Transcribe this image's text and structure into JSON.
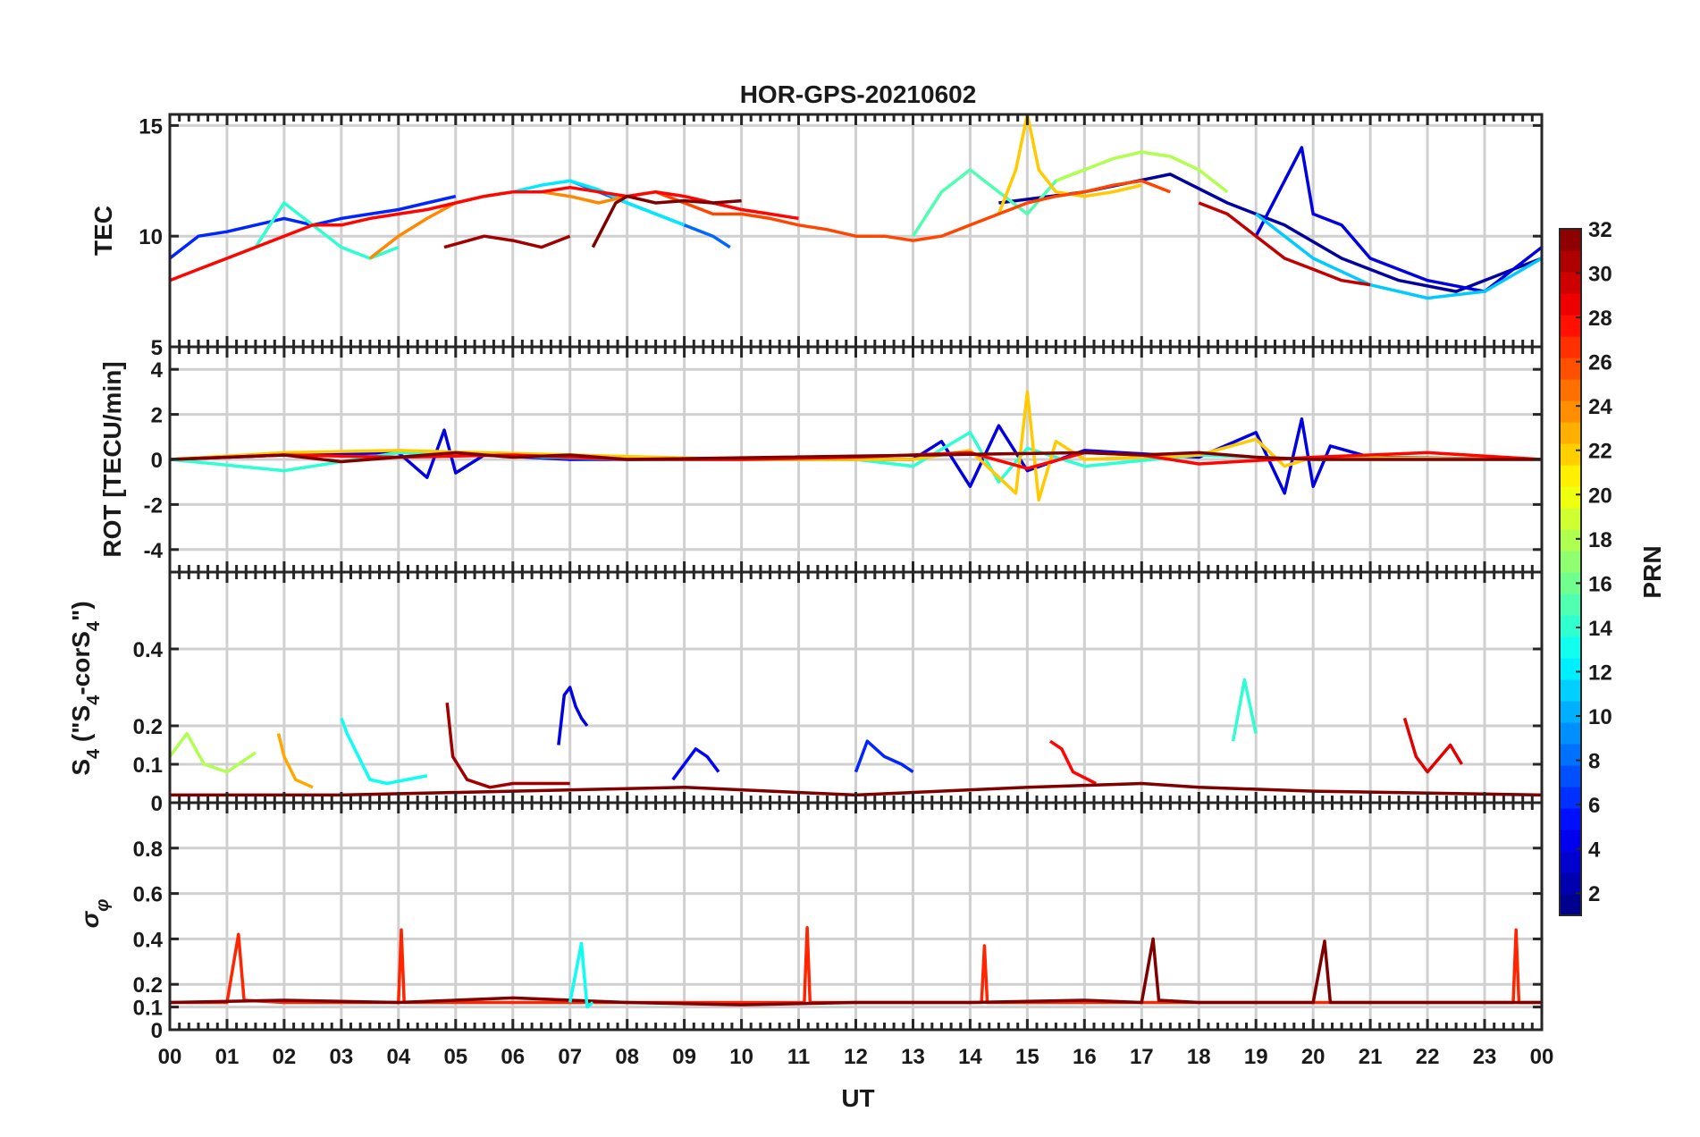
{
  "chart_data": {
    "type": "line",
    "title": "HOR-GPS-20210602",
    "xlabel": "UT",
    "x_ticks": [
      "00",
      "01",
      "02",
      "03",
      "04",
      "05",
      "06",
      "07",
      "08",
      "09",
      "10",
      "11",
      "12",
      "13",
      "14",
      "15",
      "16",
      "17",
      "18",
      "19",
      "20",
      "21",
      "22",
      "23",
      "00"
    ],
    "xlim": [
      0,
      24
    ],
    "grid": true,
    "colorbar": {
      "label": "PRN",
      "colormap": "jet",
      "range": [
        1,
        32
      ],
      "ticks": [
        "2",
        "4",
        "6",
        "8",
        "10",
        "12",
        "14",
        "16",
        "18",
        "20",
        "22",
        "24",
        "26",
        "28",
        "30",
        "32"
      ]
    },
    "panels": [
      {
        "ylabel": "TEC",
        "ylim": [
          5,
          15.5
        ],
        "yticks": [
          "5",
          "10",
          "15"
        ],
        "series": [
          {
            "prn": 2,
            "x": [
              14.5,
              16,
              17.5,
              18.5,
              19.5,
              20.5,
              21.5,
              22.5,
              23,
              23.5,
              24
            ],
            "y": [
              11.5,
              12,
              12.8,
              11.5,
              10.5,
              9,
              8,
              7.5,
              8,
              8.5,
              9
            ]
          },
          {
            "prn": 4,
            "x": [
              19,
              19.5,
              19.8,
              20,
              20.5,
              21,
              22,
              23,
              24
            ],
            "y": [
              10,
              12.5,
              14,
              11,
              10.5,
              9,
              8,
              7.5,
              9.5
            ]
          },
          {
            "prn": 6,
            "x": [
              0,
              0.5,
              1,
              1.5,
              2,
              2.5,
              3,
              3.5,
              4,
              4.5,
              5
            ],
            "y": [
              9,
              10,
              10.2,
              10.5,
              10.8,
              10.5,
              10.8,
              11,
              11.2,
              11.5,
              11.8
            ]
          },
          {
            "prn": 8,
            "x": [
              7,
              7.5,
              8,
              8.5,
              9,
              9.5,
              9.8
            ],
            "y": [
              12.5,
              12,
              11.5,
              11,
              10.5,
              10,
              9.5
            ]
          },
          {
            "prn": 11,
            "x": [
              19,
              20,
              21,
              22,
              23,
              24
            ],
            "y": [
              11,
              9,
              7.8,
              7.2,
              7.5,
              9
            ]
          },
          {
            "prn": 12,
            "x": [
              6,
              6.5,
              7,
              7.5,
              8,
              8.5,
              9
            ],
            "y": [
              12,
              12.3,
              12.5,
              12.1,
              11.5,
              11,
              10.5
            ]
          },
          {
            "prn": 14,
            "x": [
              0.5,
              1,
              1.5,
              2,
              2.5,
              3,
              3.5,
              4
            ],
            "y": [
              8.5,
              9,
              9.5,
              11.5,
              10.5,
              9.5,
              9,
              9.5
            ]
          },
          {
            "prn": 15,
            "x": [
              13,
              13.5,
              14,
              14.5,
              15,
              15.5,
              16
            ],
            "y": [
              10,
              12,
              13,
              12,
              11,
              12.5,
              13
            ]
          },
          {
            "prn": 18,
            "x": [
              15.5,
              16,
              16.5,
              17,
              17.5,
              18,
              18.5
            ],
            "y": [
              12.5,
              13,
              13.5,
              13.8,
              13.6,
              13,
              12
            ]
          },
          {
            "prn": 22,
            "x": [
              14.5,
              14.8,
              15,
              15.2,
              15.5,
              16,
              16.5,
              17
            ],
            "y": [
              11,
              13,
              15.5,
              13,
              12,
              11.8,
              12,
              12.3
            ]
          },
          {
            "prn": 24,
            "x": [
              3.5,
              4,
              4.5,
              5,
              5.5,
              6,
              6.5,
              7,
              7.5,
              8,
              8.5
            ],
            "y": [
              9,
              10,
              10.8,
              11.5,
              11.8,
              12,
              12,
              11.8,
              11.5,
              11.8,
              12
            ]
          },
          {
            "prn": 26,
            "x": [
              8.5,
              9,
              9.5,
              10,
              10.5,
              11,
              11.5,
              12,
              12.5,
              13,
              13.5,
              14,
              14.5,
              15,
              15.5,
              16,
              16.5,
              17,
              17.5
            ],
            "y": [
              12,
              11.5,
              11,
              11,
              10.8,
              10.5,
              10.3,
              10,
              10,
              9.8,
              10,
              10.5,
              11,
              11.5,
              11.8,
              12,
              12.3,
              12.5,
              12
            ]
          },
          {
            "prn": 28,
            "x": [
              0,
              0.5,
              1,
              1.5,
              2,
              2.5,
              3,
              3.5,
              4,
              4.5,
              5,
              5.5,
              6,
              6.5,
              7,
              7.5,
              8,
              8.5,
              9,
              9.5,
              10,
              10.5,
              11
            ],
            "y": [
              8,
              8.5,
              9,
              9.5,
              10,
              10.5,
              10.5,
              10.8,
              11,
              11.2,
              11.5,
              11.8,
              12,
              12,
              12.2,
              12,
              11.8,
              12,
              11.8,
              11.5,
              11.2,
              11,
              10.8
            ]
          },
          {
            "prn": 30,
            "x": [
              18,
              18.5,
              19,
              19.5,
              20,
              20.5,
              21
            ],
            "y": [
              11.5,
              11,
              10,
              9,
              8.5,
              8,
              7.8
            ]
          },
          {
            "prn": 31,
            "x": [
              4.8,
              5.5,
              6,
              6.5,
              7
            ],
            "y": [
              9.5,
              10,
              9.8,
              9.5,
              10
            ]
          },
          {
            "prn": 32,
            "x": [
              7.4,
              7.8,
              8,
              8.5,
              9,
              9.5,
              10
            ],
            "y": [
              9.5,
              11.5,
              11.8,
              11.5,
              11.6,
              11.5,
              11.6
            ]
          }
        ]
      },
      {
        "ylabel": "ROT [TECU/min]",
        "ylim": [
          -5,
          5
        ],
        "yticks": [
          "-4",
          "-2",
          "0",
          "2",
          "4"
        ],
        "series": [
          {
            "prn": 4,
            "x": [
              0,
              2,
              4,
              4.5,
              4.8,
              5,
              5.5,
              7,
              10,
              13,
              13.5,
              14,
              14.5,
              15,
              16,
              18,
              19,
              19.5,
              19.8,
              20,
              20.3,
              21,
              24
            ],
            "y": [
              0,
              0.2,
              0.3,
              -0.8,
              1.3,
              -0.6,
              0.2,
              0,
              0,
              0,
              0.8,
              -1.2,
              1.5,
              -0.5,
              0.4,
              0.1,
              1.2,
              -1.5,
              1.8,
              -1.2,
              0.6,
              0.1,
              0
            ]
          },
          {
            "prn": 14,
            "x": [
              0,
              2,
              4,
              8,
              12,
              13,
              14,
              14.5,
              15,
              16,
              18,
              20,
              24
            ],
            "y": [
              0,
              -0.5,
              0.3,
              0,
              0,
              -0.3,
              1.2,
              -1,
              0.5,
              -0.3,
              0.2,
              0,
              0
            ]
          },
          {
            "prn": 22,
            "x": [
              0,
              2,
              4,
              10,
              13,
              14,
              14.8,
              15,
              15.2,
              15.5,
              16,
              18,
              19,
              19.5,
              20,
              24
            ],
            "y": [
              0,
              0.3,
              0.4,
              0,
              0,
              0.4,
              -1.5,
              3,
              -1.8,
              0.8,
              0,
              0.2,
              0.9,
              -0.3,
              0.1,
              0
            ]
          },
          {
            "prn": 28,
            "x": [
              0,
              2,
              4,
              6,
              8,
              10,
              12,
              14,
              15,
              16,
              17,
              18,
              20,
              22,
              24
            ],
            "y": [
              0,
              0.2,
              0.1,
              0.2,
              0,
              0,
              0.1,
              0.3,
              -0.4,
              0.3,
              0.2,
              -0.2,
              0.1,
              0.3,
              0
            ]
          },
          {
            "prn": 32,
            "x": [
              0,
              1,
              2,
              3,
              5,
              6,
              7,
              8,
              16,
              17,
              18,
              19,
              20,
              24
            ],
            "y": [
              0,
              0.1,
              0.2,
              -0.1,
              0.3,
              0.1,
              0.2,
              0,
              0.3,
              0.2,
              0.3,
              0.1,
              0,
              0
            ]
          }
        ]
      },
      {
        "ylabel": "S4 (\"S4-corS4\")",
        "ylim": [
          0,
          0.6
        ],
        "yticks": [
          "0",
          "0.1",
          "0.2",
          "0.4"
        ],
        "series": [
          {
            "prn": 4,
            "x": [
              6.8,
              6.9,
              7,
              7.1,
              7.2,
              7.3
            ],
            "y": [
              0.15,
              0.28,
              0.3,
              0.25,
              0.22,
              0.2
            ]
          },
          {
            "prn": 5,
            "x": [
              8.8,
              9,
              9.2,
              9.4,
              9.6
            ],
            "y": [
              0.06,
              0.1,
              0.14,
              0.12,
              0.08
            ]
          },
          {
            "prn": 6,
            "x": [
              12,
              12.2,
              12.5,
              12.8,
              13
            ],
            "y": [
              0.08,
              0.16,
              0.12,
              0.1,
              0.08
            ]
          },
          {
            "prn": 13,
            "x": [
              3,
              3.1,
              3.3,
              3.5,
              3.8,
              4.5
            ],
            "y": [
              0.22,
              0.18,
              0.12,
              0.06,
              0.05,
              0.07
            ]
          },
          {
            "prn": 14,
            "x": [
              18.6,
              18.8,
              19
            ],
            "y": [
              0.16,
              0.32,
              0.18
            ]
          },
          {
            "prn": 18,
            "x": [
              0,
              0.3,
              0.6,
              1,
              1.5
            ],
            "y": [
              0.12,
              0.18,
              0.1,
              0.08,
              0.13
            ]
          },
          {
            "prn": 23,
            "x": [
              1.9,
              2,
              2.2,
              2.5
            ],
            "y": [
              0.18,
              0.12,
              0.06,
              0.04
            ]
          },
          {
            "prn": 28,
            "x": [
              15.4,
              15.6,
              15.8,
              16.2
            ],
            "y": [
              0.16,
              0.14,
              0.08,
              0.05
            ]
          },
          {
            "prn": 29,
            "x": [
              21.6,
              21.8,
              22,
              22.4,
              22.6
            ],
            "y": [
              0.22,
              0.12,
              0.08,
              0.15,
              0.1
            ]
          },
          {
            "prn": 31,
            "x": [
              4.85,
              4.95,
              5.2,
              5.6,
              6,
              7
            ],
            "y": [
              0.26,
              0.12,
              0.06,
              0.04,
              0.05,
              0.05
            ]
          },
          {
            "prn": 32,
            "x": [
              0,
              3,
              6,
              9,
              12,
              15,
              17,
              18,
              20,
              24
            ],
            "y": [
              0.02,
              0.02,
              0.03,
              0.04,
              0.02,
              0.04,
              0.05,
              0.04,
              0.03,
              0.02
            ]
          }
        ]
      },
      {
        "ylabel": "σφ",
        "ylim": [
          0,
          1
        ],
        "yticks": [
          "0",
          "0.1",
          "0.2",
          "0.4",
          "0.6",
          "0.8"
        ],
        "series": [
          {
            "prn": 27,
            "x": [
              0,
              1,
              1.2,
              1.3,
              2,
              3,
              4,
              4.05,
              4.1,
              5,
              10,
              11.1,
              11.15,
              11.2,
              12,
              14.2,
              14.25,
              14.3,
              20,
              23.5,
              23.55,
              23.6,
              24
            ],
            "y": [
              0.12,
              0.12,
              0.42,
              0.13,
              0.12,
              0.12,
              0.12,
              0.44,
              0.12,
              0.12,
              0.12,
              0.12,
              0.45,
              0.12,
              0.12,
              0.12,
              0.37,
              0.12,
              0.12,
              0.12,
              0.44,
              0.12,
              0.12
            ]
          },
          {
            "prn": 32,
            "x": [
              0,
              2,
              4,
              6,
              8,
              10,
              12,
              14,
              16,
              17,
              17.2,
              17.3,
              18,
              20,
              20.2,
              20.3,
              22,
              24
            ],
            "y": [
              0.12,
              0.13,
              0.12,
              0.14,
              0.12,
              0.11,
              0.12,
              0.12,
              0.13,
              0.12,
              0.4,
              0.13,
              0.12,
              0.12,
              0.39,
              0.12,
              0.12,
              0.12
            ]
          },
          {
            "prn": 13,
            "x": [
              7,
              7.2,
              7.3,
              7.4
            ],
            "y": [
              0.12,
              0.38,
              0.1,
              0.12
            ]
          }
        ]
      }
    ]
  }
}
